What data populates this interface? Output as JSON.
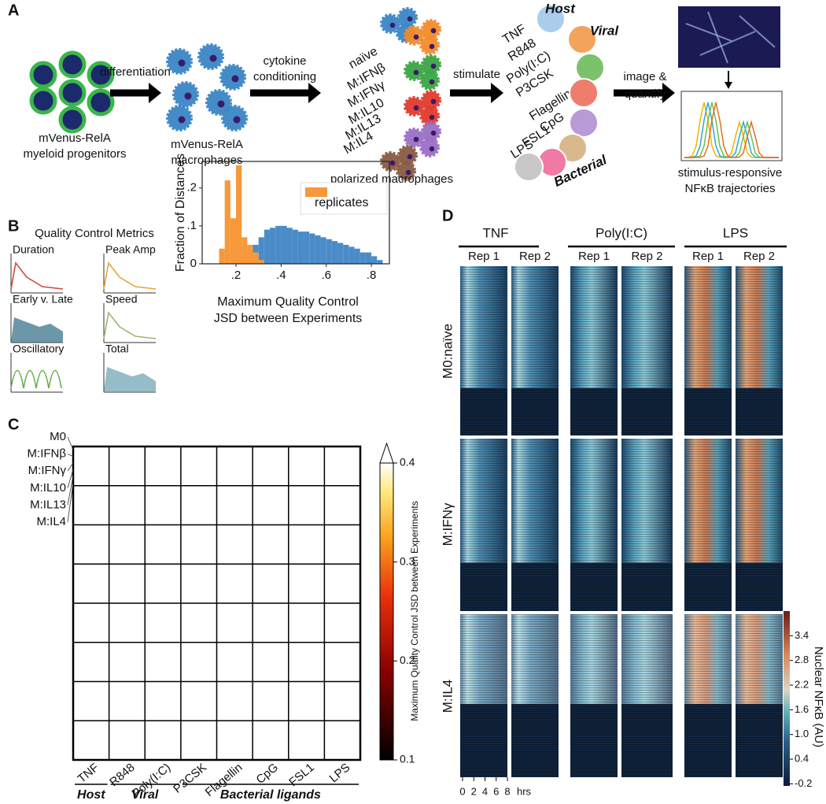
{
  "panel_labels": [
    "A",
    "B",
    "C",
    "D"
  ],
  "panel_a": {
    "progenitors": [
      "mVenus-RelA",
      "myeloid progenitors"
    ],
    "step1": "differentiation",
    "macrophages": [
      "mVenus-RelA",
      "macrophages"
    ],
    "step2": [
      "cytokine",
      "conditioning"
    ],
    "conditions": [
      "naïve",
      "M:IFNβ",
      "M:IFNγ",
      "M:IL10",
      "M:IL13",
      "M:IL4"
    ],
    "polarized": "polarized macrophages",
    "step3": "stimulate",
    "stimuli": [
      "TNF",
      "R848",
      "Poly(I:C)",
      "P3CSK",
      "Flagellin",
      "CpG",
      "FSL1",
      "LPS"
    ],
    "groups": [
      "Host",
      "Viral",
      "Bacterial"
    ],
    "step4": [
      "image &",
      "quantify"
    ],
    "output": [
      "stimulus-responsive",
      "NFκB trajectories"
    ]
  },
  "panel_b": {
    "title": "Quality Control Metrics",
    "metrics": [
      "Duration",
      "Peak Amp",
      "Early v. Late",
      "Speed",
      "Oscillatory",
      "Total"
    ]
  },
  "chart_data": {
    "type": "histogram",
    "xlabel": [
      "Maximum Quality Control",
      "JSD between Experiments"
    ],
    "ylabel": "Fraction of Distances",
    "bins": [
      0.1,
      0.125,
      0.15,
      0.175,
      0.2,
      0.225,
      0.25,
      0.275,
      0.3,
      0.325,
      0.35,
      0.375,
      0.4,
      0.425,
      0.45,
      0.475,
      0.5,
      0.525,
      0.55,
      0.575,
      0.6,
      0.625,
      0.65,
      0.675,
      0.7,
      0.725,
      0.75,
      0.775,
      0.8,
      0.825,
      0.85
    ],
    "series": [
      {
        "name": "replicates",
        "color": "#f7983a",
        "values": [
          0,
          0.04,
          0.22,
          0.12,
          0.26,
          0.07,
          0.05,
          0.03,
          0.01,
          0,
          0,
          0,
          0,
          0,
          0,
          0,
          0,
          0,
          0,
          0,
          0,
          0,
          0,
          0,
          0,
          0,
          0,
          0,
          0,
          0
        ]
      },
      {
        "color": "#4a8cc8",
        "values": [
          0,
          0,
          0,
          0,
          0.01,
          0.02,
          0.03,
          0.05,
          0.07,
          0.09,
          0.095,
          0.1,
          0.1,
          0.095,
          0.09,
          0.085,
          0.085,
          0.08,
          0.075,
          0.07,
          0.065,
          0.06,
          0.055,
          0.05,
          0.045,
          0.04,
          0.03,
          0.03,
          0.02,
          0.01
        ]
      }
    ],
    "xlim": [
      0.05,
      0.88
    ],
    "ylim": [
      0,
      0.27
    ],
    "xticks": [
      {
        "value": 0.2,
        "label": ".2"
      },
      {
        "value": 0.4,
        "label": ".4"
      },
      {
        "value": 0.6,
        "label": ".6"
      },
      {
        "value": 0.8,
        "label": ".8"
      }
    ],
    "yticks": [
      0,
      {
        "value": 0.1,
        "label": ".1"
      },
      {
        "value": 0.2,
        "label": ".2"
      }
    ],
    "legend": "upper right"
  },
  "panel_c": {
    "rows": [
      "M0",
      "M:IFNβ",
      "M:IFNγ",
      "M:IL10",
      "M:IL13",
      "M:IL4"
    ],
    "columns": [
      "TNF",
      "R848",
      "Poly(I:C)",
      "P3CSK",
      "Flagellin",
      "CpG",
      "FSL1",
      "LPS"
    ],
    "groups": [
      "Host",
      "Viral",
      "Bacterial ligands"
    ],
    "colorbar": {
      "label": "Maximum Quality Control JSD between Experiments",
      "lim": [
        0.1,
        0.4
      ],
      "ticks": [
        0.1,
        0.2,
        0.3,
        0.4
      ]
    }
  },
  "panel_d": {
    "stimuli": [
      "TNF",
      "Poly(I:C)",
      "LPS"
    ],
    "replicates": [
      "Rep 1",
      "Rep 2"
    ],
    "rows": [
      "M0:naïve",
      "M:IFNγ",
      "M:IL4"
    ],
    "xlim": [
      0,
      8
    ],
    "xticks": [
      0,
      2,
      4,
      6,
      8
    ],
    "x_unit": "hrs",
    "colorbar": {
      "label": "Nuclear NFκB (AU)",
      "lim": [
        -0.25,
        4.0
      ],
      "ticks": [
        -0.2,
        0.4,
        {
          "value": 1,
          "label": "1.0"
        },
        1.6,
        2.2,
        2.8,
        3.4
      ]
    }
  }
}
